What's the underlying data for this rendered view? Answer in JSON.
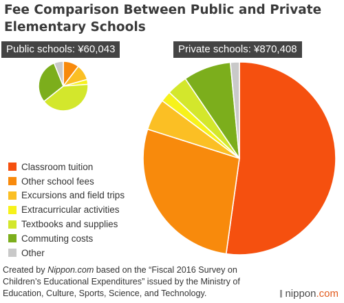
{
  "title": "Fee Comparison Between Public and Private Elementary Schools",
  "chart_data": [
    {
      "type": "pie",
      "title": "Public schools: ¥60,043",
      "categories": [
        "Classroom tuition",
        "Other school fees",
        "Excursions and field trips",
        "Extracurricular activities",
        "Textbooks and supplies",
        "Commuting costs",
        "Other"
      ],
      "values": [
        0,
        10.4,
        10.3,
        3.2,
        40.4,
        29.6,
        6.1
      ]
    },
    {
      "type": "pie",
      "title": "Private schools: ¥870,408",
      "categories": [
        "Classroom tuition",
        "Other school fees",
        "Excursions and field trips",
        "Extracurricular activities",
        "Textbooks and supplies",
        "Commuting costs",
        "Other"
      ],
      "values": [
        52.2,
        27.7,
        5.3,
        1.8,
        3.5,
        8.0,
        1.5
      ]
    }
  ],
  "legend": {
    "items": [
      {
        "label": "Classroom tuition",
        "color": "#f5500f"
      },
      {
        "label": "Other school fees",
        "color": "#f88a0c"
      },
      {
        "label": "Excursions and field trips",
        "color": "#fbbf24"
      },
      {
        "label": "Extracurricular activities",
        "color": "#f7f21b"
      },
      {
        "label": "Textbooks and supplies",
        "color": "#d3e72c"
      },
      {
        "label": "Commuting costs",
        "color": "#7cae1c"
      },
      {
        "label": "Other",
        "color": "#c9c9c9"
      }
    ]
  },
  "footnote": {
    "prefix": "Created by ",
    "source": "Nippon.com",
    "suffix": " based on the “Fiscal 2016 Survey on Children’s Educational Expenditures” issued by the Ministry of Education, Culture, Sports, Science, and Technology."
  },
  "logo": {
    "main": "nippon",
    "suffix": ".com"
  }
}
